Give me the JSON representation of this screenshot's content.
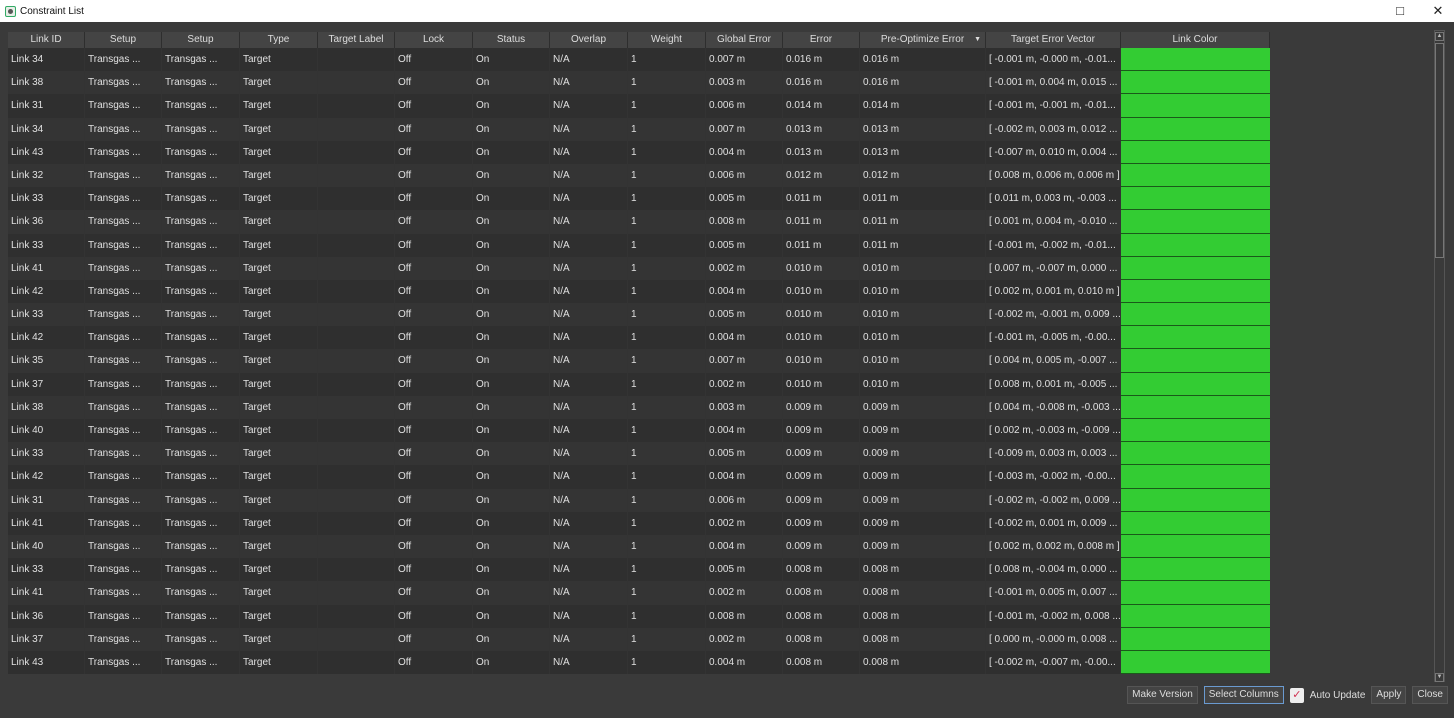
{
  "window": {
    "title": "Constraint List",
    "maximize_icon": "maximize-icon",
    "close_icon": "close-icon"
  },
  "table": {
    "columns": [
      "Link ID",
      "Setup",
      "Setup",
      "Type",
      "Target Label",
      "Lock",
      "Status",
      "Overlap",
      "Weight",
      "Global Error",
      "Error",
      "Pre-Optimize Error",
      "Target Error Vector",
      "Link Color"
    ],
    "sorted_column": "Pre-Optimize Error",
    "link_color": "#33cc33",
    "rows": [
      [
        "Link 34",
        "Transgas ...",
        "Transgas ...",
        "Target",
        "",
        "Off",
        "On",
        "N/A",
        "1",
        "0.007 m",
        "0.016 m",
        "0.016 m",
        "[ -0.001 m, -0.000 m, -0.01..."
      ],
      [
        "Link 38",
        "Transgas ...",
        "Transgas ...",
        "Target",
        "",
        "Off",
        "On",
        "N/A",
        "1",
        "0.003 m",
        "0.016 m",
        "0.016 m",
        "[ -0.001 m, 0.004 m, 0.015 ..."
      ],
      [
        "Link 31",
        "Transgas ...",
        "Transgas ...",
        "Target",
        "",
        "Off",
        "On",
        "N/A",
        "1",
        "0.006 m",
        "0.014 m",
        "0.014 m",
        "[ -0.001 m, -0.001 m, -0.01..."
      ],
      [
        "Link 34",
        "Transgas ...",
        "Transgas ...",
        "Target",
        "",
        "Off",
        "On",
        "N/A",
        "1",
        "0.007 m",
        "0.013 m",
        "0.013 m",
        "[ -0.002 m, 0.003 m, 0.012 ..."
      ],
      [
        "Link 43",
        "Transgas ...",
        "Transgas ...",
        "Target",
        "",
        "Off",
        "On",
        "N/A",
        "1",
        "0.004 m",
        "0.013 m",
        "0.013 m",
        "[ -0.007 m, 0.010 m, 0.004 ..."
      ],
      [
        "Link 32",
        "Transgas ...",
        "Transgas ...",
        "Target",
        "",
        "Off",
        "On",
        "N/A",
        "1",
        "0.006 m",
        "0.012 m",
        "0.012 m",
        "[ 0.008 m, 0.006 m, 0.006 m ]"
      ],
      [
        "Link 33",
        "Transgas ...",
        "Transgas ...",
        "Target",
        "",
        "Off",
        "On",
        "N/A",
        "1",
        "0.005 m",
        "0.011 m",
        "0.011 m",
        "[ 0.011 m, 0.003 m, -0.003 ..."
      ],
      [
        "Link 36",
        "Transgas ...",
        "Transgas ...",
        "Target",
        "",
        "Off",
        "On",
        "N/A",
        "1",
        "0.008 m",
        "0.011 m",
        "0.011 m",
        "[ 0.001 m, 0.004 m, -0.010 ..."
      ],
      [
        "Link 33",
        "Transgas ...",
        "Transgas ...",
        "Target",
        "",
        "Off",
        "On",
        "N/A",
        "1",
        "0.005 m",
        "0.011 m",
        "0.011 m",
        "[ -0.001 m, -0.002 m, -0.01..."
      ],
      [
        "Link 41",
        "Transgas ...",
        "Transgas ...",
        "Target",
        "",
        "Off",
        "On",
        "N/A",
        "1",
        "0.002 m",
        "0.010 m",
        "0.010 m",
        "[ 0.007 m, -0.007 m, 0.000 ..."
      ],
      [
        "Link 42",
        "Transgas ...",
        "Transgas ...",
        "Target",
        "",
        "Off",
        "On",
        "N/A",
        "1",
        "0.004 m",
        "0.010 m",
        "0.010 m",
        "[ 0.002 m, 0.001 m, 0.010 m ]"
      ],
      [
        "Link 33",
        "Transgas ...",
        "Transgas ...",
        "Target",
        "",
        "Off",
        "On",
        "N/A",
        "1",
        "0.005 m",
        "0.010 m",
        "0.010 m",
        "[ -0.002 m, -0.001 m, 0.009 ..."
      ],
      [
        "Link 42",
        "Transgas ...",
        "Transgas ...",
        "Target",
        "",
        "Off",
        "On",
        "N/A",
        "1",
        "0.004 m",
        "0.010 m",
        "0.010 m",
        "[ -0.001 m, -0.005 m, -0.00..."
      ],
      [
        "Link 35",
        "Transgas ...",
        "Transgas ...",
        "Target",
        "",
        "Off",
        "On",
        "N/A",
        "1",
        "0.007 m",
        "0.010 m",
        "0.010 m",
        "[ 0.004 m, 0.005 m, -0.007 ..."
      ],
      [
        "Link 37",
        "Transgas ...",
        "Transgas ...",
        "Target",
        "",
        "Off",
        "On",
        "N/A",
        "1",
        "0.002 m",
        "0.010 m",
        "0.010 m",
        "[ 0.008 m, 0.001 m, -0.005 ..."
      ],
      [
        "Link 38",
        "Transgas ...",
        "Transgas ...",
        "Target",
        "",
        "Off",
        "On",
        "N/A",
        "1",
        "0.003 m",
        "0.009 m",
        "0.009 m",
        "[ 0.004 m, -0.008 m, -0.003 ..."
      ],
      [
        "Link 40",
        "Transgas ...",
        "Transgas ...",
        "Target",
        "",
        "Off",
        "On",
        "N/A",
        "1",
        "0.004 m",
        "0.009 m",
        "0.009 m",
        "[ 0.002 m, -0.003 m, -0.009 ..."
      ],
      [
        "Link 33",
        "Transgas ...",
        "Transgas ...",
        "Target",
        "",
        "Off",
        "On",
        "N/A",
        "1",
        "0.005 m",
        "0.009 m",
        "0.009 m",
        "[ -0.009 m, 0.003 m, 0.003 ..."
      ],
      [
        "Link 42",
        "Transgas ...",
        "Transgas ...",
        "Target",
        "",
        "Off",
        "On",
        "N/A",
        "1",
        "0.004 m",
        "0.009 m",
        "0.009 m",
        "[ -0.003 m, -0.002 m, -0.00..."
      ],
      [
        "Link 31",
        "Transgas ...",
        "Transgas ...",
        "Target",
        "",
        "Off",
        "On",
        "N/A",
        "1",
        "0.006 m",
        "0.009 m",
        "0.009 m",
        "[ -0.002 m, -0.002 m, 0.009 ..."
      ],
      [
        "Link 41",
        "Transgas ...",
        "Transgas ...",
        "Target",
        "",
        "Off",
        "On",
        "N/A",
        "1",
        "0.002 m",
        "0.009 m",
        "0.009 m",
        "[ -0.002 m, 0.001 m, 0.009 ..."
      ],
      [
        "Link 40",
        "Transgas ...",
        "Transgas ...",
        "Target",
        "",
        "Off",
        "On",
        "N/A",
        "1",
        "0.004 m",
        "0.009 m",
        "0.009 m",
        "[ 0.002 m, 0.002 m, 0.008 m ]"
      ],
      [
        "Link 33",
        "Transgas ...",
        "Transgas ...",
        "Target",
        "",
        "Off",
        "On",
        "N/A",
        "1",
        "0.005 m",
        "0.008 m",
        "0.008 m",
        "[ 0.008 m, -0.004 m, 0.000 ..."
      ],
      [
        "Link 41",
        "Transgas ...",
        "Transgas ...",
        "Target",
        "",
        "Off",
        "On",
        "N/A",
        "1",
        "0.002 m",
        "0.008 m",
        "0.008 m",
        "[ -0.001 m, 0.005 m, 0.007 ..."
      ],
      [
        "Link 36",
        "Transgas ...",
        "Transgas ...",
        "Target",
        "",
        "Off",
        "On",
        "N/A",
        "1",
        "0.008 m",
        "0.008 m",
        "0.008 m",
        "[ -0.001 m, -0.002 m, 0.008 ..."
      ],
      [
        "Link 37",
        "Transgas ...",
        "Transgas ...",
        "Target",
        "",
        "Off",
        "On",
        "N/A",
        "1",
        "0.002 m",
        "0.008 m",
        "0.008 m",
        "[ 0.000 m, -0.000 m, 0.008 ..."
      ],
      [
        "Link 43",
        "Transgas ...",
        "Transgas ...",
        "Target",
        "",
        "Off",
        "On",
        "N/A",
        "1",
        "0.004 m",
        "0.008 m",
        "0.008 m",
        "[ -0.002 m, -0.007 m, -0.00..."
      ]
    ]
  },
  "footer": {
    "make_version": "Make Version",
    "select_columns": "Select Columns",
    "auto_update": "Auto Update",
    "auto_update_checked": true,
    "apply": "Apply",
    "close": "Close"
  }
}
